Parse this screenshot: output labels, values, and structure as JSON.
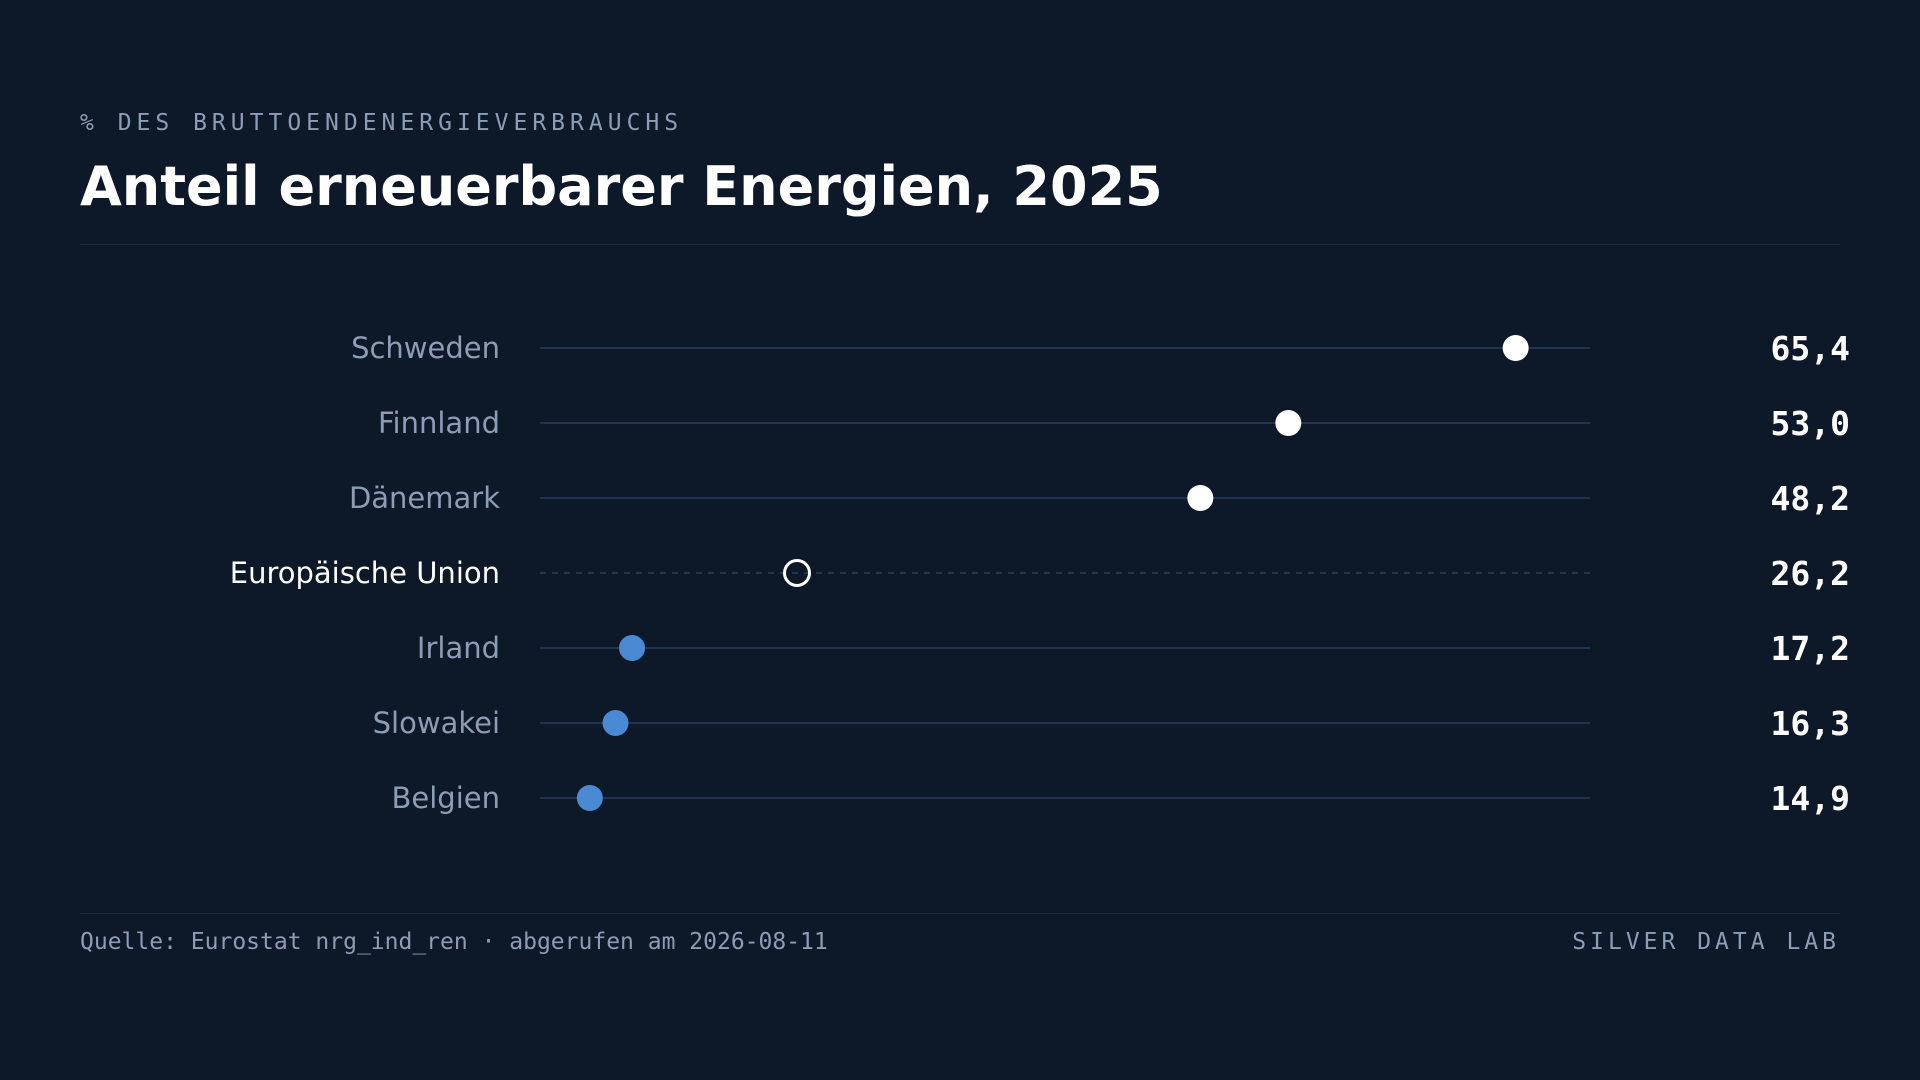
{
  "header": {
    "kicker": "% DES BRUTTOENDENERGIEVERBRAUCHS",
    "title": "Anteil erneuerbarer Energien, 2025"
  },
  "footer": {
    "source": "Quelle: Eurostat nrg_ind_ren · abgerufen am 2026-08-11",
    "brand": "SILVER DATA LAB"
  },
  "colors": {
    "background": "#0d1829",
    "above_reference": "#ffffff",
    "below_reference": "#4a8ad4",
    "reference_marker": "#ffffff",
    "track": "#1e3450"
  },
  "chart_data": {
    "type": "dot",
    "orientation": "horizontal",
    "title": "Anteil erneuerbarer Energien, 2025",
    "subtitle": "% DES BRUTTOENDENERGIEVERBRAUCHS",
    "categories": [
      "Schweden",
      "Finnland",
      "Dänemark",
      "Europäische Union",
      "Irland",
      "Slowakei",
      "Belgien"
    ],
    "values": [
      65.4,
      53.0,
      48.2,
      26.2,
      17.2,
      16.3,
      14.9
    ],
    "value_labels": [
      "65,4",
      "53,0",
      "48,2",
      "26,2",
      "17,2",
      "16,3",
      "14,9"
    ],
    "reference_category": "Europäische Union",
    "xlim": [
      10,
      70
    ],
    "grid": false,
    "legend": "none"
  }
}
